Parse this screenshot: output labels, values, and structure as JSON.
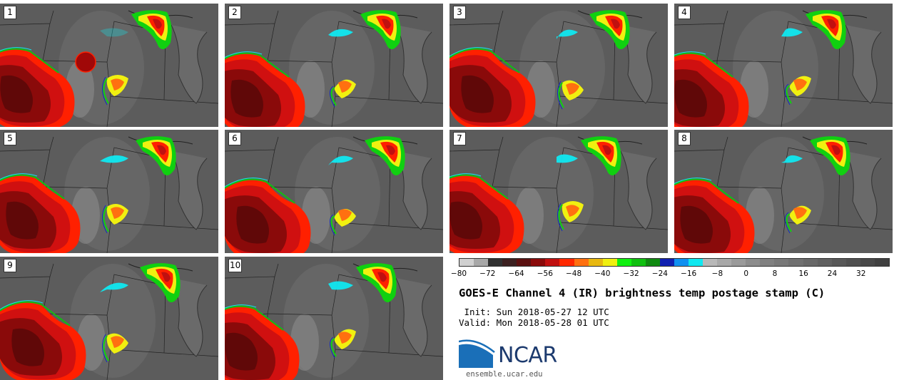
{
  "panels": [
    {
      "label": "1"
    },
    {
      "label": "2"
    },
    {
      "label": "3"
    },
    {
      "label": "4"
    },
    {
      "label": "5"
    },
    {
      "label": "6"
    },
    {
      "label": "7"
    },
    {
      "label": "8"
    },
    {
      "label": "9"
    },
    {
      "label": "10"
    }
  ],
  "colorbar": {
    "colors": [
      "#d0d0d0",
      "#a8a8a8",
      "#303030",
      "#3c2020",
      "#5a1010",
      "#8a0a0a",
      "#c01010",
      "#ff2800",
      "#ff7010",
      "#e8b810",
      "#f0f010",
      "#10f010",
      "#10c010",
      "#108a10",
      "#1020b0",
      "#1090f0",
      "#10e8f0",
      "#b8b8b8",
      "#a8a8a8",
      "#9a9a9a",
      "#8c8c8c",
      "#808080",
      "#787878",
      "#707070",
      "#686868",
      "#606060",
      "#585858",
      "#505050",
      "#484848",
      "#404040"
    ],
    "min": -80,
    "max": 40,
    "tick_labels": [
      "−80",
      "−72",
      "−64",
      "−56",
      "−48",
      "−40",
      "−32",
      "−24",
      "−16",
      "−8",
      "0",
      "8",
      "16",
      "24",
      "32"
    ],
    "tick_values": [
      -80,
      -72,
      -64,
      -56,
      -48,
      -40,
      -32,
      -24,
      -16,
      -8,
      0,
      8,
      16,
      24,
      32
    ]
  },
  "title": "GOES-E Channel 4 (IR) brightness temp postage stamp (C)",
  "init": " Init: Sun 2018-05-27 12 UTC",
  "valid": "Valid: Mon 2018-05-28 01 UTC",
  "logo": {
    "text": "NCAR",
    "url": "ensemble.ucar.edu"
  },
  "colors": {
    "cold_core": "#7a0000",
    "storm_red": "#e01010",
    "orange": "#ff7010",
    "yellow": "#f0f010",
    "green": "#10d010",
    "blue": "#1030c0",
    "cyan": "#10e8f0",
    "background": "#5e5e5e"
  }
}
